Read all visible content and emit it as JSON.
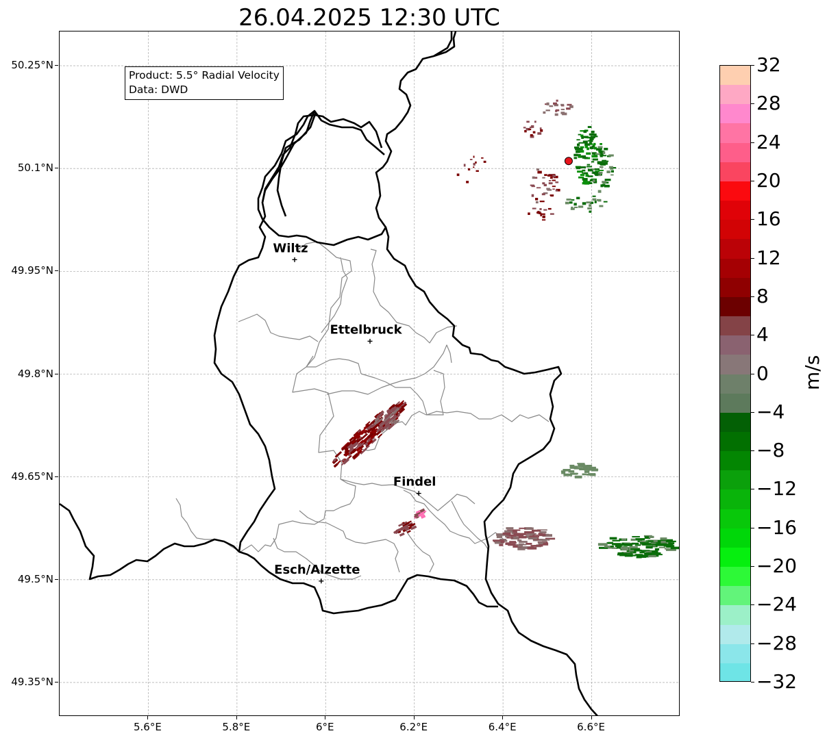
{
  "title": "26.04.2025 12:30 UTC",
  "info": {
    "product": "Product: 5.5° Radial Velocity",
    "data": "Data: DWD"
  },
  "axes": {
    "y_ticks": [
      "50.25°N",
      "50.1°N",
      "49.95°N",
      "49.8°N",
      "49.65°N",
      "49.5°N",
      "49.35°N"
    ],
    "x_ticks": [
      "5.6°E",
      "5.8°E",
      "6°E",
      "6.2°E",
      "6.4°E",
      "6.6°E"
    ],
    "lat_range": [
      49.3,
      50.3
    ],
    "lon_range": [
      5.4,
      6.8
    ],
    "grid": true
  },
  "cities": [
    {
      "name": "Wiltz",
      "lon": 5.93,
      "lat": 49.967
    },
    {
      "name": "Ettelbruck",
      "lon": 6.1,
      "lat": 49.848
    },
    {
      "name": "Findel",
      "lon": 6.21,
      "lat": 49.626
    },
    {
      "name": "Esch/Alzette",
      "lon": 5.99,
      "lat": 49.498
    }
  ],
  "radar_site": {
    "lon": 6.548,
    "lat": 50.111,
    "color": "#e8141c"
  },
  "colorbar": {
    "unit": "m/s",
    "min": -32,
    "max": 32,
    "tick_labels": [
      "32",
      "28",
      "24",
      "20",
      "16",
      "12",
      "8",
      "4",
      "0",
      "−4",
      "−8",
      "−12",
      "−16",
      "−20",
      "−24",
      "−28",
      "−32"
    ],
    "colors_top_to_bottom": [
      "#fecfb0",
      "#fea8c4",
      "#ff88cd",
      "#ff74a4",
      "#fe5e8a",
      "#fa4560",
      "#fb0a0f",
      "#e00208",
      "#d20305",
      "#bb0207",
      "#a50003",
      "#8f0001",
      "#6c0000",
      "#844347",
      "#8a6270",
      "#887778",
      "#6e806a",
      "#5d7a5c",
      "#036005",
      "#027001",
      "#038602",
      "#0ba00b",
      "#09b40a",
      "#08c80a",
      "#00d709",
      "#06ef0f",
      "#2df937",
      "#62f47a",
      "#9cf0c8",
      "#b1eaeb",
      "#8be6ea",
      "#6ee4e6"
    ]
  },
  "echo_colors": {
    "approach_dark": "#7a0000",
    "approach_brown": "#8a4a52",
    "approach_pink": "#ff6fb4",
    "neutral_gray": "#8a7070",
    "recede_grayish": "#6a8a64",
    "recede_green": "#0a6d0a",
    "recede_bright": "#0a8f0a"
  }
}
